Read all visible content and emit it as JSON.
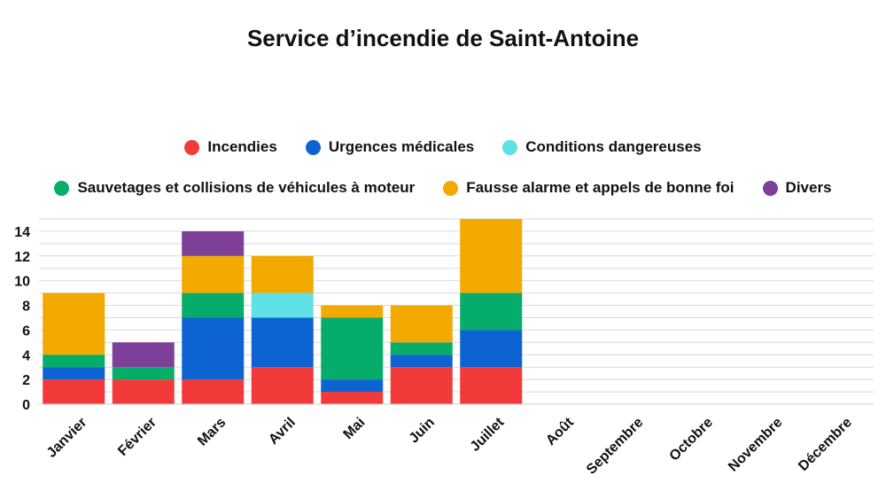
{
  "chart_data": {
    "type": "bar",
    "stacked": true,
    "title": "Service d’incendie de Saint-Antoine",
    "categories": [
      "Janvier",
      "Février",
      "Mars",
      "Avril",
      "Mai",
      "Juin",
      "Juillet",
      "Août",
      "Septembre",
      "Octobre",
      "Novembre",
      "Décembre"
    ],
    "series": [
      {
        "name": "Incendies",
        "color": "#f23a3a",
        "values": [
          2,
          2,
          2,
          3,
          1,
          3,
          3,
          0,
          0,
          0,
          0,
          0
        ]
      },
      {
        "name": "Urgences médicales",
        "color": "#0d63d1",
        "values": [
          1,
          0,
          5,
          4,
          1,
          1,
          3,
          0,
          0,
          0,
          0,
          0
        ]
      },
      {
        "name": "Conditions dangereuses",
        "color": "#5ee0e6",
        "values": [
          0,
          0,
          0,
          2,
          0,
          0,
          0,
          0,
          0,
          0,
          0,
          0
        ]
      },
      {
        "name": "Sauvetages et collisions de véhicules à moteur",
        "color": "#06ad6a",
        "values": [
          1,
          1,
          2,
          0,
          5,
          1,
          3,
          0,
          0,
          0,
          0,
          0
        ]
      },
      {
        "name": "Fausse alarme et appels de bonne foi",
        "color": "#f2a900",
        "values": [
          5,
          0,
          3,
          3,
          1,
          3,
          6,
          0,
          0,
          0,
          0,
          0
        ]
      },
      {
        "name": "Divers",
        "color": "#7d3f98",
        "values": [
          0,
          2,
          2,
          0,
          0,
          0,
          0,
          0,
          0,
          0,
          0,
          0
        ]
      }
    ],
    "yticks": [
      "0",
      "2",
      "4",
      "6",
      "8",
      "10",
      "12",
      "14"
    ],
    "ylim": [
      0,
      15
    ],
    "grid": true,
    "legend_position": "top"
  }
}
